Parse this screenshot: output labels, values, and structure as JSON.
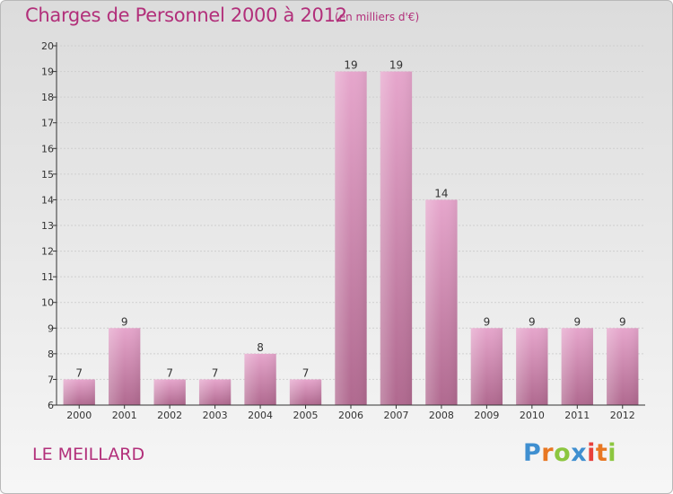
{
  "header": {
    "title": "Charges de Personnel 2000 à 2012",
    "subtitle": "(en milliers d'€)"
  },
  "footer": {
    "commune": "LE MEILLARD",
    "brand": "Proxiti",
    "brand_letters": [
      {
        "ch": "P",
        "color": "#3f8fd0"
      },
      {
        "ch": "r",
        "color": "#e87722"
      },
      {
        "ch": "o",
        "color": "#8cc63f"
      },
      {
        "ch": "x",
        "color": "#3f8fd0"
      },
      {
        "ch": "i",
        "color": "#e8403a"
      },
      {
        "ch": "t",
        "color": "#e87722"
      },
      {
        "ch": "i",
        "color": "#8cc63f"
      }
    ]
  },
  "colors": {
    "accent": "#b22f7a",
    "bar_top": "#e6a6cc",
    "bar_bottom": "#b0698f",
    "axis": "#333333",
    "grid": "#cfcfcf"
  },
  "chart_data": {
    "type": "bar",
    "title": "Charges de Personnel 2000 à 2012",
    "subtitle": "(en milliers d'€)",
    "categories": [
      "2000",
      "2001",
      "2002",
      "2003",
      "2004",
      "2005",
      "2006",
      "2007",
      "2008",
      "2009",
      "2010",
      "2011",
      "2012"
    ],
    "values": [
      7,
      9,
      7,
      7,
      8,
      7,
      19,
      19,
      14,
      9,
      9,
      9,
      9
    ],
    "ylim": [
      6,
      20
    ],
    "yticks": [
      6,
      7,
      8,
      9,
      10,
      11,
      12,
      13,
      14,
      15,
      16,
      17,
      18,
      19,
      20
    ],
    "xlabel": "",
    "ylabel": "",
    "grid": true,
    "data_labels": true
  }
}
